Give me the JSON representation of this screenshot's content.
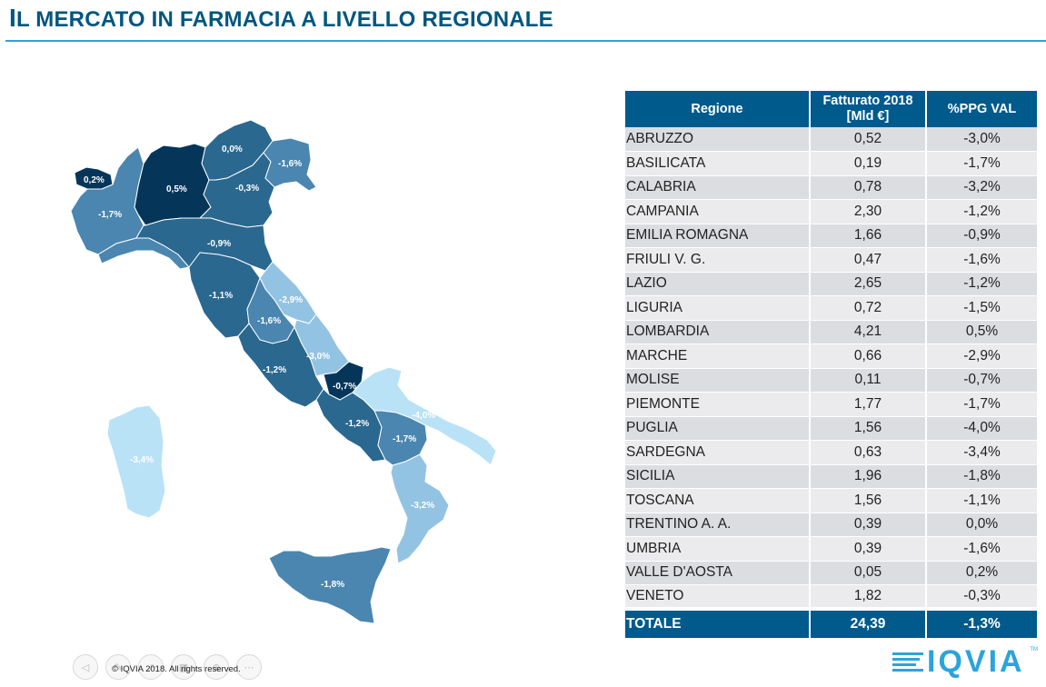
{
  "title": {
    "first": "I",
    "rest": "l mercato in farmacia a livello regionale"
  },
  "table": {
    "headers": {
      "regione": "Regione",
      "fatturato": "Fatturato 2018\n[Mld €]",
      "fatturato_l1": "Fatturato 2018",
      "fatturato_l2": "[Mld €]",
      "ppg": "%PPG VAL"
    },
    "rows": [
      {
        "regione": "ABRUZZO",
        "fatturato": "0,52",
        "ppg": "-3,0%"
      },
      {
        "regione": "BASILICATA",
        "fatturato": "0,19",
        "ppg": "-1,7%"
      },
      {
        "regione": "CALABRIA",
        "fatturato": "0,78",
        "ppg": "-3,2%"
      },
      {
        "regione": "CAMPANIA",
        "fatturato": "2,30",
        "ppg": "-1,2%"
      },
      {
        "regione": "EMILIA ROMAGNA",
        "fatturato": "1,66",
        "ppg": "-0,9%"
      },
      {
        "regione": "FRIULI V. G.",
        "fatturato": "0,47",
        "ppg": "-1,6%"
      },
      {
        "regione": "LAZIO",
        "fatturato": "2,65",
        "ppg": "-1,2%"
      },
      {
        "regione": "LIGURIA",
        "fatturato": "0,72",
        "ppg": "-1,5%"
      },
      {
        "regione": "LOMBARDIA",
        "fatturato": "4,21",
        "ppg": "0,5%"
      },
      {
        "regione": "MARCHE",
        "fatturato": "0,66",
        "ppg": "-2,9%"
      },
      {
        "regione": "MOLISE",
        "fatturato": "0,11",
        "ppg": "-0,7%"
      },
      {
        "regione": "PIEMONTE",
        "fatturato": "1,77",
        "ppg": "-1,7%"
      },
      {
        "regione": "PUGLIA",
        "fatturato": "1,56",
        "ppg": "-4,0%"
      },
      {
        "regione": "SARDEGNA",
        "fatturato": "0,63",
        "ppg": "-3,4%"
      },
      {
        "regione": "SICILIA",
        "fatturato": "1,96",
        "ppg": "-1,8%"
      },
      {
        "regione": "TOSCANA",
        "fatturato": "1,56",
        "ppg": "-1,1%"
      },
      {
        "regione": "TRENTINO A. A.",
        "fatturato": "0,39",
        "ppg": "0,0%"
      },
      {
        "regione": "UMBRIA",
        "fatturato": "0,39",
        "ppg": "-1,6%"
      },
      {
        "regione": "VALLE D'AOSTA",
        "fatturato": "0,05",
        "ppg": "0,2%"
      },
      {
        "regione": "VENETO",
        "fatturato": "1,82",
        "ppg": "-0,3%"
      }
    ],
    "total": {
      "regione": "TOTALE",
      "fatturato": "24,39",
      "ppg": "-1,3%"
    }
  },
  "map": {
    "labels": {
      "valle_daosta": "0,2%",
      "piemonte": "-1,7%",
      "lombardia": "0,5%",
      "trentino": "0,0%",
      "veneto": "-0,3%",
      "friuli": "-1,6%",
      "emilia": "-0,9%",
      "toscana": "-1,1%",
      "umbria": "-1,6%",
      "marche": "-2,9%",
      "lazio": "-1,2%",
      "abruzzo": "-3,0%",
      "molise": "-0,7%",
      "campania": "-1,2%",
      "puglia": "-4,0%",
      "basilicata": "-1,7%",
      "calabria": "-3,2%",
      "sicilia": "-1,8%",
      "sardegna": "-3,4%"
    },
    "colors": {
      "darkest": "#05365a",
      "dark": "#2a6890",
      "mid": "#4a86b0",
      "midlight": "#6fa3c8",
      "light": "#93c3e3",
      "lightest": "#b9e2f7"
    }
  },
  "footer": {
    "copyright": "© IQVIA 2018. All rights reserved."
  },
  "logo": {
    "text": "IQVIA",
    "tm": "TM"
  },
  "colors": {
    "title": "#00567f",
    "rule": "#2aa4dc",
    "header_bg": "#005a8c"
  }
}
